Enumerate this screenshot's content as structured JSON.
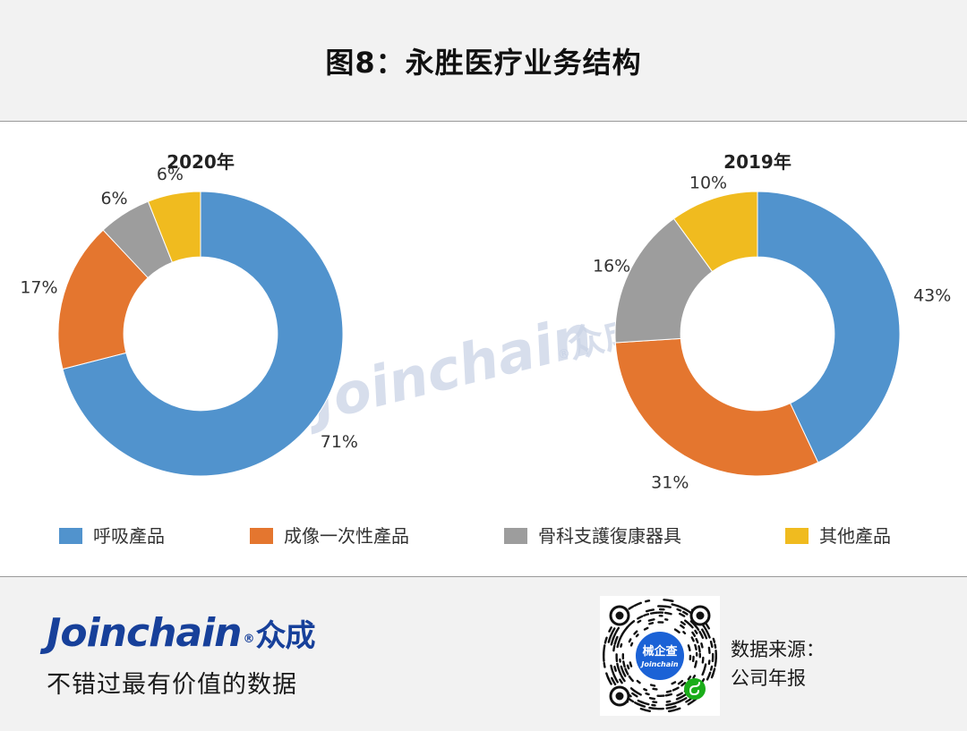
{
  "header": {
    "title": "图8：永胜医疗业务结构"
  },
  "watermark": {
    "text": "Joinchain",
    "mark": "®",
    "cn": "众成"
  },
  "chart_data": [
    {
      "type": "pie",
      "title": "2020年",
      "categories": [
        "呼吸產品",
        "成像一次性產品",
        "骨科支護復康器具",
        "其他產品"
      ],
      "values": [
        71,
        17,
        6,
        6
      ],
      "labels": [
        "71%",
        "17%",
        "6%",
        "6%"
      ],
      "colors": [
        "#5193cd",
        "#e4762f",
        "#9d9d9d",
        "#f0bb1f"
      ],
      "inner_radius_ratio": 0.54,
      "legend": "bottom"
    },
    {
      "type": "pie",
      "title": "2019年",
      "categories": [
        "呼吸產品",
        "成像一次性產品",
        "骨科支護復康器具",
        "其他產品"
      ],
      "values": [
        43,
        31,
        16,
        10
      ],
      "labels": [
        "43%",
        "31%",
        "16%",
        "10%"
      ],
      "colors": [
        "#5193cd",
        "#e4762f",
        "#9d9d9d",
        "#f0bb1f"
      ],
      "inner_radius_ratio": 0.54,
      "legend": "bottom"
    }
  ],
  "legend": {
    "items": [
      {
        "label": "呼吸產品",
        "color": "#5193cd"
      },
      {
        "label": "成像一次性產品",
        "color": "#e4762f"
      },
      {
        "label": "骨科支護復康器具",
        "color": "#9d9d9d"
      },
      {
        "label": "其他產品",
        "color": "#f0bb1f"
      }
    ]
  },
  "footer": {
    "brand_name": "Joinchain",
    "brand_reg": "®",
    "brand_cn": "众成",
    "slogan": "不错过最有价值的数据",
    "qr_top": "械企查",
    "qr_bottom": "Joinchain",
    "source_label": "数据来源：",
    "source_value": "公司年报"
  }
}
